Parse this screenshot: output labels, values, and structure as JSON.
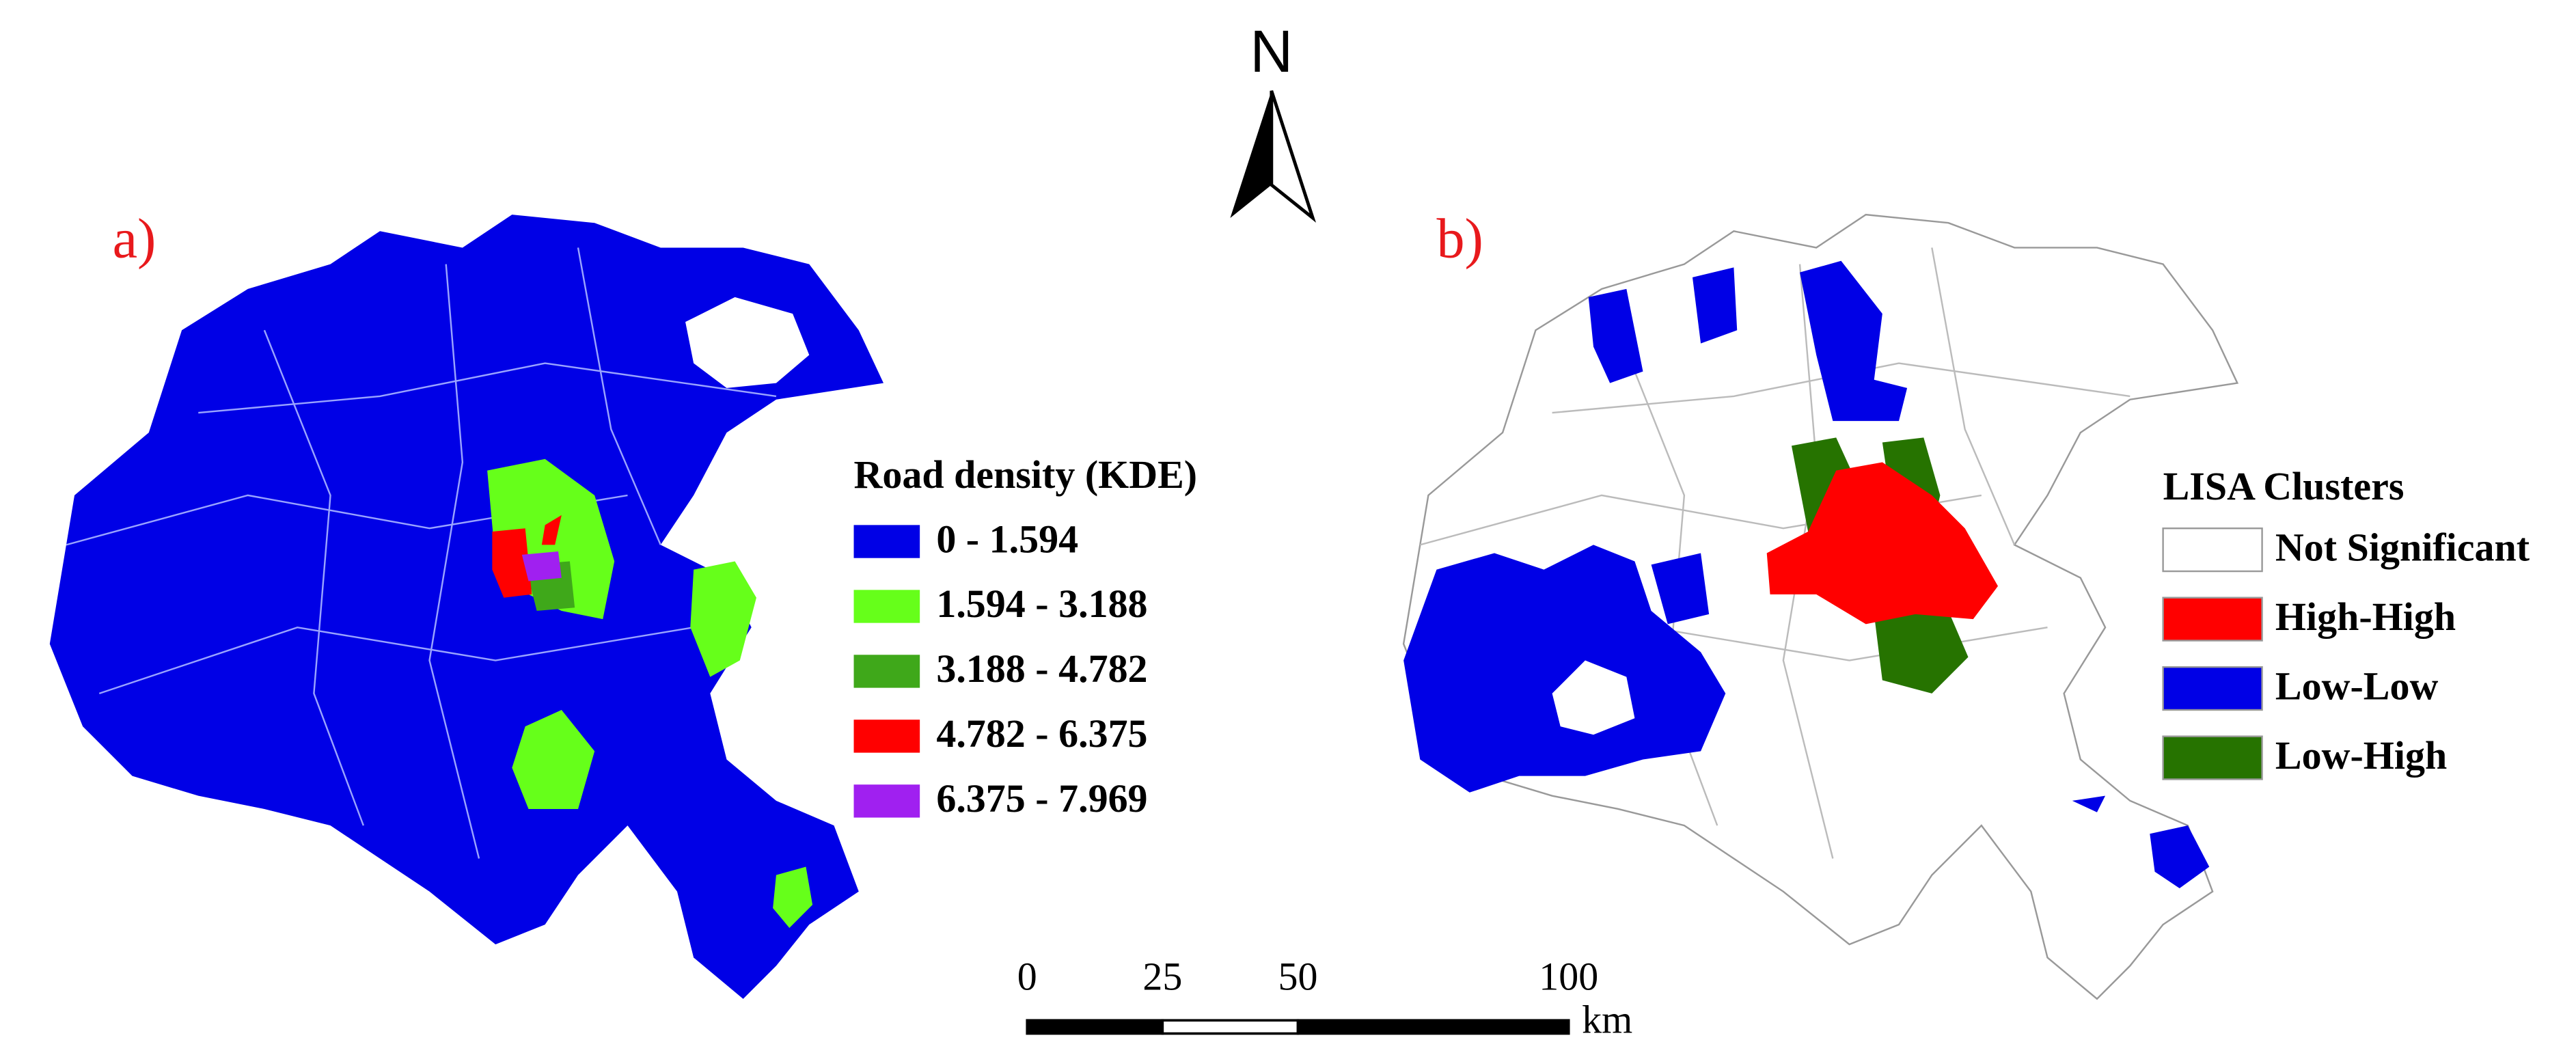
{
  "north_arrow": {
    "label": "N"
  },
  "panels": [
    {
      "label": "a)",
      "legend": {
        "title": "Road density (KDE)",
        "items": [
          {
            "label": "0 - 1.594",
            "color": "#0000e6"
          },
          {
            "label": "1.594 - 3.188",
            "color": "#66ff1a"
          },
          {
            "label": "3.188 - 4.782",
            "color": "#3fa81a"
          },
          {
            "label": "4.782 - 6.375",
            "color": "#ff0000"
          },
          {
            "label": "6.375 - 7.969",
            "color": "#a020f0"
          }
        ]
      }
    },
    {
      "label": "b)",
      "legend": {
        "title": "LISA Clusters",
        "items": [
          {
            "label": "Not Significant",
            "color": "#ffffff"
          },
          {
            "label": "High-High",
            "color": "#ff0000"
          },
          {
            "label": "Low-Low",
            "color": "#0000e6"
          },
          {
            "label": "Low-High",
            "color": "#267300"
          }
        ]
      }
    }
  ],
  "scale_bar": {
    "ticks": [
      0,
      25,
      50,
      100
    ],
    "unit": "km"
  }
}
